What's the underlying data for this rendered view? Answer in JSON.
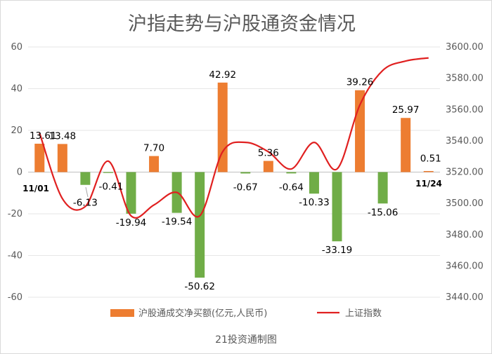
{
  "chart_data": {
    "type": "bar+line",
    "title": "沪指走势与沪股通资金情况",
    "footer": "21投资通制图",
    "legend_position": "bottom",
    "grid": true,
    "left_axis": {
      "min": -60,
      "max": 60,
      "step": 20,
      "ticks": [
        "60",
        "40",
        "20",
        "0",
        "-20",
        "-40",
        "-60"
      ]
    },
    "right_axis": {
      "min": 3440,
      "max": 3600,
      "step": 20,
      "ticks": [
        "3600.00",
        "3580.00",
        "3560.00",
        "3540.00",
        "3520.00",
        "3500.00",
        "3480.00",
        "3460.00",
        "3440.00"
      ]
    },
    "date_labels": {
      "start": "11/01",
      "end": "11/24"
    },
    "bar_series": {
      "name": "沪股通成交净买额(亿元,人民币)",
      "positive_color": "#ed7d31",
      "negative_color": "#70ad47",
      "values": [
        13.61,
        13.48,
        -6.13,
        -0.41,
        -19.94,
        7.7,
        -19.54,
        -50.62,
        42.92,
        -0.67,
        5.36,
        -0.64,
        -10.33,
        -33.19,
        39.26,
        -15.06,
        25.97,
        0.51
      ],
      "labels": [
        "13.61",
        "13.48",
        "-6.13",
        "-0.41",
        "-19.94",
        "7.70",
        "-19.54",
        "-50.62",
        "42.92",
        "-0.67",
        "5.36",
        "-0.64",
        "-10.33",
        "-33.19",
        "39.26",
        "-15.06",
        "25.97",
        "0.51"
      ]
    },
    "line_series": {
      "name": "上证指数",
      "color": "#e02020",
      "values": [
        3545,
        3503,
        3498,
        3527,
        3492,
        3499,
        3507,
        3492,
        3533,
        3539,
        3533,
        3522,
        3539,
        3522,
        3563,
        3585,
        3591,
        3593
      ]
    }
  }
}
